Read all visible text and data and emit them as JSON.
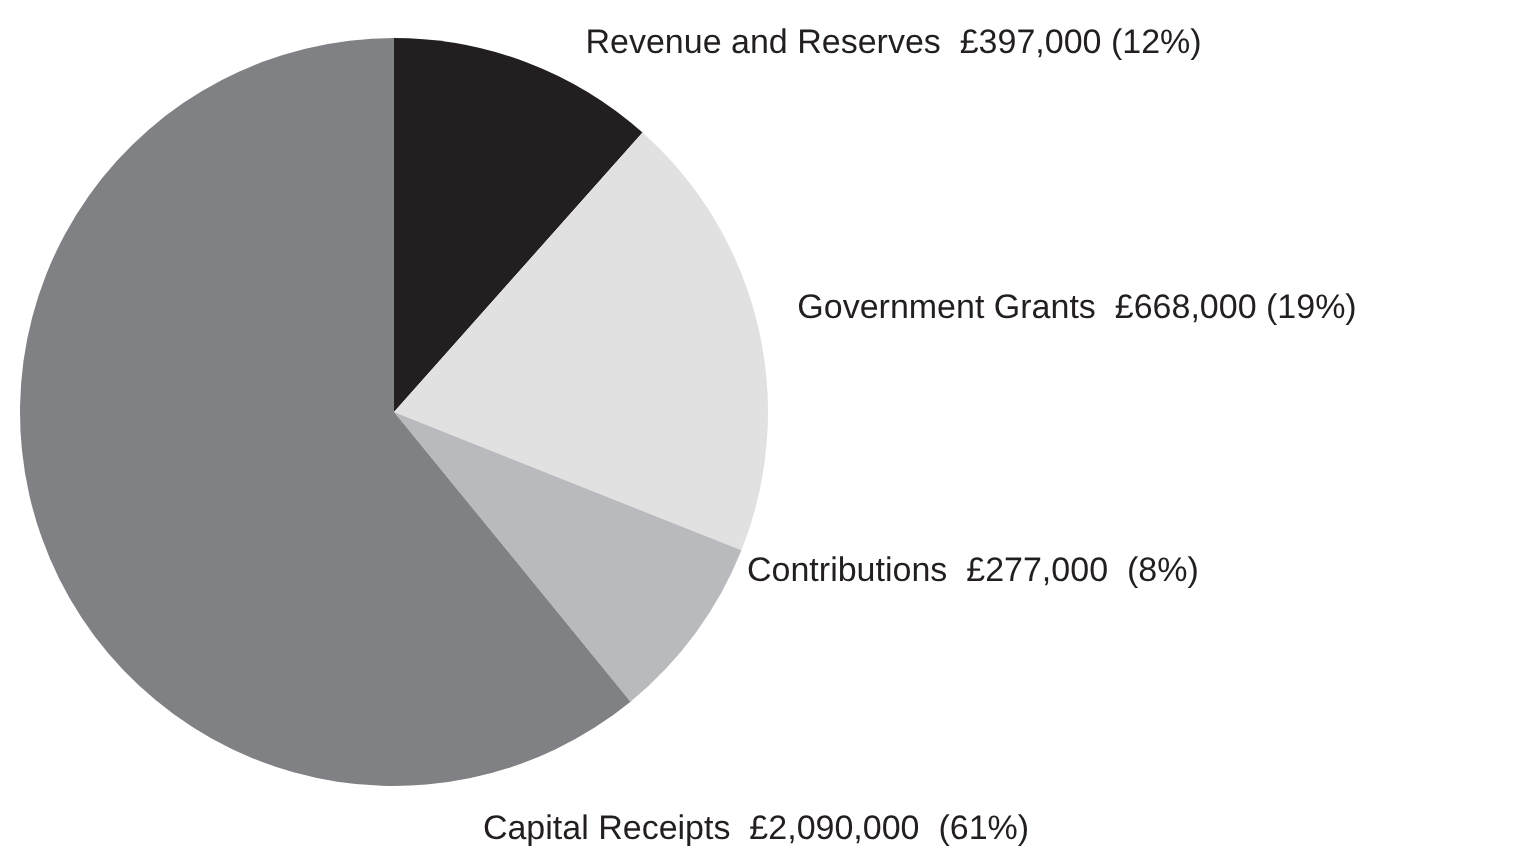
{
  "chart_data": {
    "type": "pie",
    "categories": [
      "Revenue and Reserves",
      "Government Grants",
      "Contributions",
      "Capital Receipts"
    ],
    "values": [
      397000,
      668000,
      277000,
      2090000
    ],
    "colors": [
      "#231f20",
      "#e1e1e2",
      "#b9babd",
      "#808184"
    ],
    "value_labels": [
      "£397,000 (12%)",
      "£668,000 (19%)",
      "£277,000  (8%)",
      "£2,090,000  (61%)"
    ],
    "legend": false
  }
}
